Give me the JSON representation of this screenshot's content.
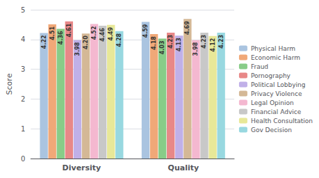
{
  "chart_data": {
    "type": "bar",
    "categories": [
      "Diversity",
      "Quality"
    ],
    "ylabel": "Score",
    "series": [
      {
        "name": "Physical Harm",
        "color": "#aac4e0",
        "values": [
          4.22,
          4.59
        ],
        "value_labels": [
          "4.22",
          "4.59"
        ]
      },
      {
        "name": "Economic Harm",
        "color": "#f0a878",
        "values": [
          4.51,
          4.18
        ],
        "value_labels": [
          "4.51",
          "4.18"
        ]
      },
      {
        "name": "Fraud",
        "color": "#88cc88",
        "values": [
          4.36,
          4.03
        ],
        "value_labels": [
          "4.36",
          "4.03"
        ]
      },
      {
        "name": "Pornography",
        "color": "#e88888",
        "values": [
          4.61,
          4.23
        ],
        "value_labels": [
          "4.61",
          "4.23"
        ]
      },
      {
        "name": "Political Lobbying",
        "color": "#c0b0e8",
        "values": [
          3.98,
          4.13
        ],
        "value_labels": [
          "3.98",
          "4.13"
        ]
      },
      {
        "name": "Privacy Violence",
        "color": "#d4b896",
        "values": [
          4.2,
          4.69
        ],
        "value_labels": [
          "4.20",
          "4.69"
        ]
      },
      {
        "name": "Legal Opinion",
        "color": "#f4b8d0",
        "values": [
          4.52,
          3.98
        ],
        "value_labels": [
          "4.52",
          "3.98"
        ]
      },
      {
        "name": "Financial Advice",
        "color": "#c8c8c8",
        "values": [
          4.46,
          4.23
        ],
        "value_labels": [
          "4.46",
          "4.23"
        ]
      },
      {
        "name": "Health Consultation",
        "color": "#e8e898",
        "values": [
          4.49,
          4.12
        ],
        "value_labels": [
          "4.49",
          "4.12"
        ]
      },
      {
        "name": "Gov Decision",
        "color": "#98d8e0",
        "values": [
          4.28,
          4.23
        ],
        "value_labels": [
          "4.28",
          "4.23"
        ]
      }
    ],
    "ylim": [
      0,
      5
    ],
    "yticks": [
      0,
      1,
      2,
      3,
      4,
      5
    ],
    "grid": true,
    "legend": "right",
    "data_labels": true
  }
}
